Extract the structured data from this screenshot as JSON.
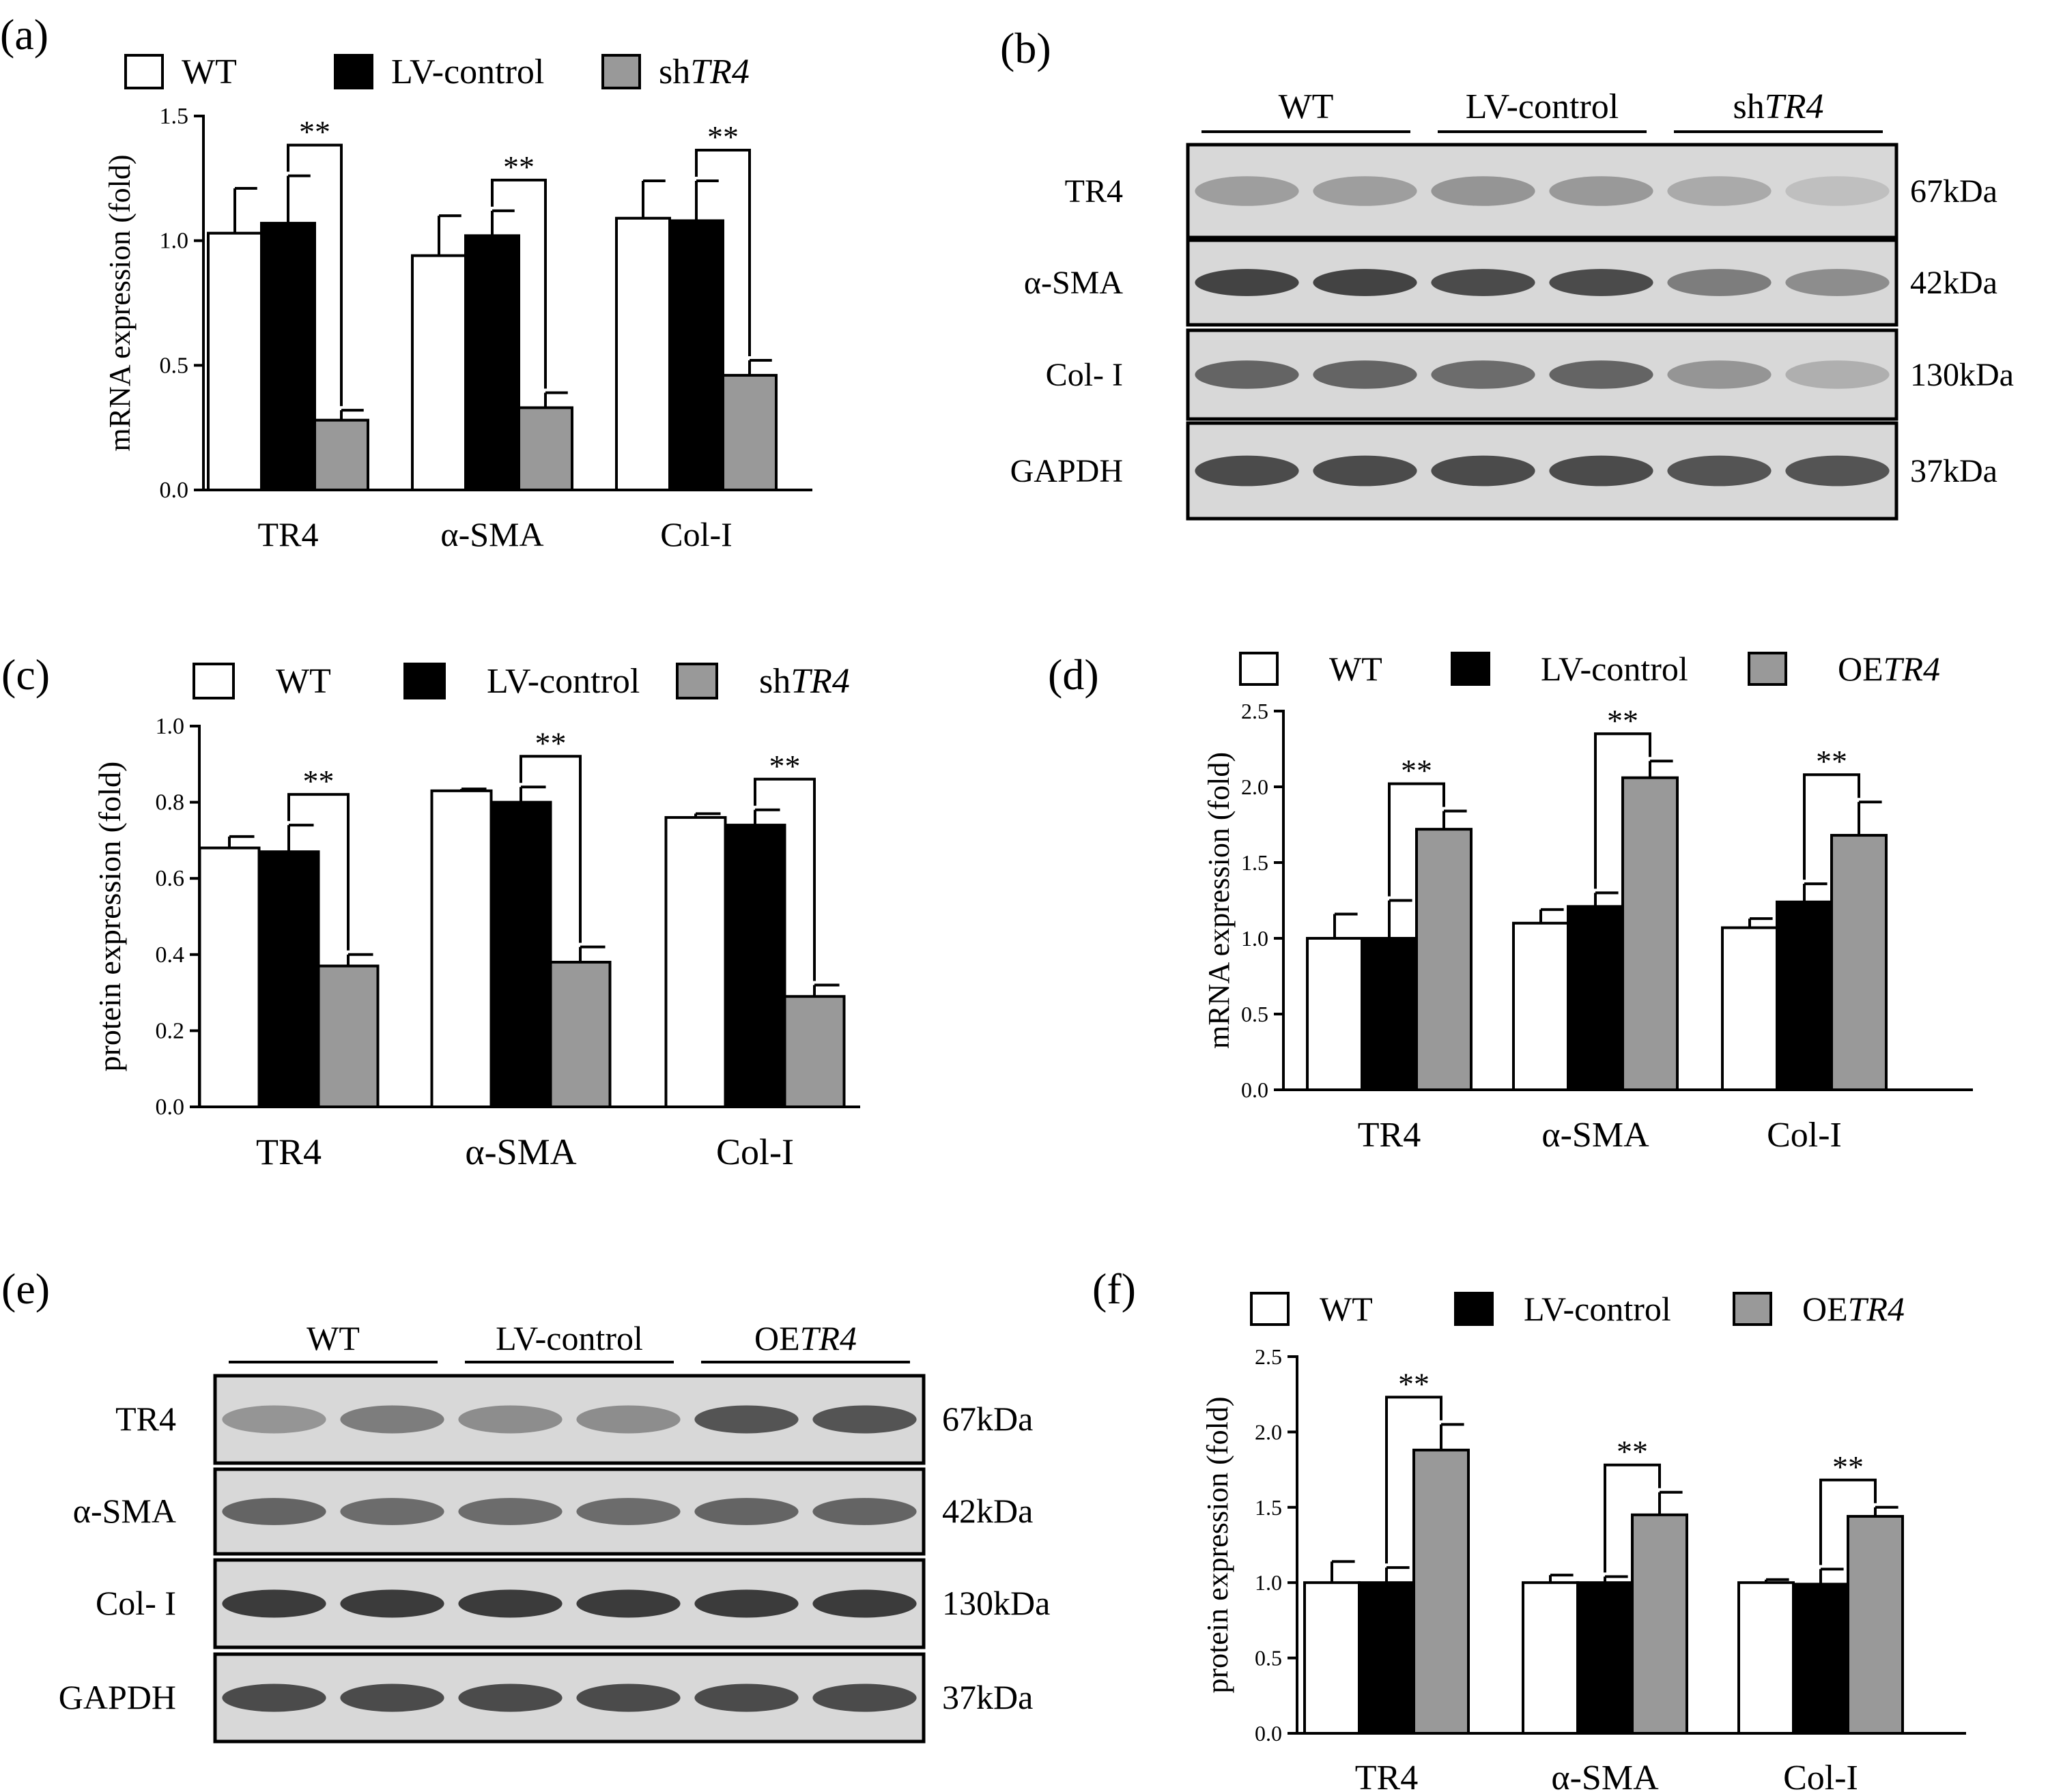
{
  "figure": {
    "panel_labels": [
      "(a)",
      "(b)",
      "(c)",
      "(d)",
      "(e)",
      "(f)"
    ],
    "significance_label": "**",
    "colors": {
      "WT": "#ffffff",
      "LV-control": "#000000",
      "treatment": "#999999",
      "blot_background": "#d8d8d8",
      "band": "#333333"
    }
  },
  "chart_data": [
    {
      "panel": "(a)",
      "type": "bar",
      "ylabel": "mRNA expression (fold)",
      "ylim": [
        0,
        1.5
      ],
      "yticks": [
        "0.0",
        "0.5",
        "1.0",
        "1.5"
      ],
      "categories": [
        "TR4",
        "α-SMA",
        "Col-I"
      ],
      "series": [
        {
          "name": "WT",
          "values": [
            1.03,
            0.94,
            1.09
          ],
          "errors": [
            0.18,
            0.16,
            0.15
          ]
        },
        {
          "name": "LV-control",
          "values": [
            1.07,
            1.02,
            1.08
          ],
          "errors": [
            0.19,
            0.1,
            0.16
          ]
        },
        {
          "name": "shTR4",
          "values": [
            0.28,
            0.33,
            0.46
          ],
          "errors": [
            0.04,
            0.06,
            0.06
          ]
        }
      ],
      "legend": {
        "placement": "top",
        "entries": [
          {
            "prefix": "WT",
            "italic": ""
          },
          {
            "prefix": "LV-control",
            "italic": ""
          },
          {
            "prefix": "sh",
            "italic": "TR4"
          }
        ]
      },
      "significance": [
        {
          "category": 0,
          "label": "**"
        },
        {
          "category": 1,
          "label": "**"
        },
        {
          "category": 2,
          "label": "**"
        }
      ]
    },
    {
      "panel": "(c)",
      "type": "bar",
      "ylabel": "protein expression (fold)",
      "ylim": [
        0,
        1.0
      ],
      "yticks": [
        "0.0",
        "0.2",
        "0.4",
        "0.6",
        "0.8",
        "1.0"
      ],
      "categories": [
        "TR4",
        "α-SMA",
        "Col-I"
      ],
      "series": [
        {
          "name": "WT",
          "values": [
            0.68,
            0.83,
            0.76
          ],
          "errors": [
            0.03,
            0.005,
            0.01
          ]
        },
        {
          "name": "LV-control",
          "values": [
            0.67,
            0.8,
            0.74
          ],
          "errors": [
            0.07,
            0.04,
            0.04
          ]
        },
        {
          "name": "shTR4",
          "values": [
            0.37,
            0.38,
            0.29
          ],
          "errors": [
            0.03,
            0.04,
            0.03
          ]
        }
      ],
      "legend": {
        "placement": "top",
        "entries": [
          {
            "prefix": "WT",
            "italic": ""
          },
          {
            "prefix": "LV-control",
            "italic": ""
          },
          {
            "prefix": "sh",
            "italic": "TR4"
          }
        ]
      },
      "significance": [
        {
          "category": 0,
          "label": "**"
        },
        {
          "category": 1,
          "label": "**"
        },
        {
          "category": 2,
          "label": "**"
        }
      ]
    },
    {
      "panel": "(d)",
      "type": "bar",
      "ylabel": "mRNA expression (fold)",
      "ylim": [
        0,
        2.5
      ],
      "yticks": [
        "0.0",
        "0.5",
        "1.0",
        "1.5",
        "2.0",
        "2.5"
      ],
      "categories": [
        "TR4",
        "α-SMA",
        "Col-I"
      ],
      "series": [
        {
          "name": "WT",
          "values": [
            1.0,
            1.1,
            1.07
          ],
          "errors": [
            0.16,
            0.09,
            0.06
          ]
        },
        {
          "name": "LV-control",
          "values": [
            1.0,
            1.21,
            1.24
          ],
          "errors": [
            0.25,
            0.09,
            0.12
          ]
        },
        {
          "name": "OETR4",
          "values": [
            1.72,
            2.06,
            1.68
          ],
          "errors": [
            0.12,
            0.11,
            0.22
          ]
        }
      ],
      "legend": {
        "placement": "top",
        "entries": [
          {
            "prefix": "WT",
            "italic": ""
          },
          {
            "prefix": "LV-control",
            "italic": ""
          },
          {
            "prefix": "OE",
            "italic": "TR4"
          }
        ]
      },
      "significance": [
        {
          "category": 0,
          "label": "**"
        },
        {
          "category": 1,
          "label": "**"
        },
        {
          "category": 2,
          "label": "**"
        }
      ]
    },
    {
      "panel": "(f)",
      "type": "bar",
      "ylabel": "protein expression (fold)",
      "ylim": [
        0,
        2.5
      ],
      "yticks": [
        "0.0",
        "0.5",
        "1.0",
        "1.5",
        "2.0",
        "2.5"
      ],
      "categories": [
        "TR4",
        "α-SMA",
        "Col-I"
      ],
      "series": [
        {
          "name": "WT",
          "values": [
            1.0,
            1.0,
            1.0
          ],
          "errors": [
            0.14,
            0.05,
            0.02
          ]
        },
        {
          "name": "LV-control",
          "values": [
            1.0,
            1.0,
            0.99
          ],
          "errors": [
            0.1,
            0.04,
            0.1
          ]
        },
        {
          "name": "OETR4",
          "values": [
            1.88,
            1.45,
            1.44
          ],
          "errors": [
            0.17,
            0.15,
            0.06
          ]
        }
      ],
      "legend": {
        "placement": "top",
        "entries": [
          {
            "prefix": "WT",
            "italic": ""
          },
          {
            "prefix": "LV-control",
            "italic": ""
          },
          {
            "prefix": "OE",
            "italic": "TR4"
          }
        ]
      },
      "significance": [
        {
          "category": 0,
          "label": "**"
        },
        {
          "category": 1,
          "label": "**"
        },
        {
          "category": 2,
          "label": "**"
        }
      ]
    }
  ],
  "blots": [
    {
      "panel": "(b)",
      "groups": [
        {
          "prefix": "WT",
          "italic": ""
        },
        {
          "prefix": "LV-control",
          "italic": ""
        },
        {
          "prefix": "sh",
          "italic": "TR4"
        }
      ],
      "rows": [
        {
          "protein": "TR4",
          "size": "67kDa",
          "intensity": [
            0.35,
            0.35,
            0.4,
            0.38,
            0.28,
            0.15
          ]
        },
        {
          "protein": "α-SMA",
          "size": "42kDa",
          "intensity": [
            0.9,
            0.9,
            0.85,
            0.85,
            0.55,
            0.45
          ]
        },
        {
          "protein": "Col- I",
          "size": "130kDa",
          "intensity": [
            0.7,
            0.7,
            0.65,
            0.7,
            0.4,
            0.25
          ]
        },
        {
          "protein": "GAPDH",
          "size": "37kDa",
          "intensity": [
            0.85,
            0.85,
            0.85,
            0.85,
            0.8,
            0.8
          ]
        }
      ]
    },
    {
      "panel": "(e)",
      "groups": [
        {
          "prefix": "WT",
          "italic": ""
        },
        {
          "prefix": "LV-control",
          "italic": ""
        },
        {
          "prefix": "OE",
          "italic": "TR4"
        }
      ],
      "rows": [
        {
          "protein": "TR4",
          "size": "67kDa",
          "intensity": [
            0.4,
            0.55,
            0.45,
            0.45,
            0.8,
            0.8
          ]
        },
        {
          "protein": "α-SMA",
          "size": "42kDa",
          "intensity": [
            0.7,
            0.65,
            0.65,
            0.65,
            0.7,
            0.7
          ]
        },
        {
          "protein": "Col- I",
          "size": "130kDa",
          "intensity": [
            0.95,
            0.95,
            0.95,
            0.95,
            0.95,
            0.95
          ]
        },
        {
          "protein": "GAPDH",
          "size": "37kDa",
          "intensity": [
            0.85,
            0.85,
            0.85,
            0.85,
            0.85,
            0.85
          ]
        }
      ]
    }
  ]
}
